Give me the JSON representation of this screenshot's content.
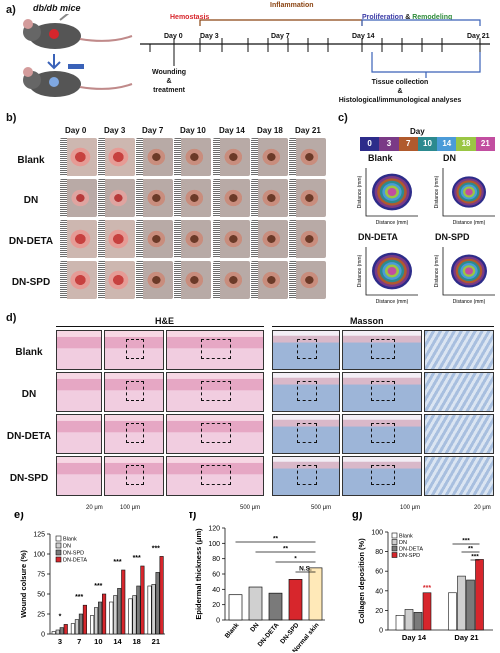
{
  "panel_a": {
    "label": "a)",
    "mouse_title": "db/db mice",
    "stages": {
      "hemostasis": "Hemostasis",
      "inflammation": "Inflammation",
      "proliferation": "Proliferation",
      "amp": "&",
      "remodeling": "Remodeling"
    },
    "days": [
      "Day 0",
      "Day 3",
      "Day 7",
      "Day 14",
      "Day 21"
    ],
    "wounding": "Wounding\n&\ntreatment",
    "tissue_collection": "Tissue collection\n&\nHistological/immunological analyses",
    "colors": {
      "hemostasis": "#d7262c",
      "inflammation": "#8b4513",
      "proliferation": "#3b3ba6",
      "remodeling": "#2e8b3a",
      "bracket": "#3a62b8"
    }
  },
  "panel_b": {
    "label": "b)",
    "days": [
      "Day 0",
      "Day 3",
      "Day 7",
      "Day 10",
      "Day 14",
      "Day 18",
      "Day 21"
    ],
    "groups": [
      "Blank",
      "DN",
      "DN-DETA",
      "DN-SPD"
    ]
  },
  "panel_c": {
    "label": "c)",
    "title": "Day",
    "legend": [
      {
        "label": "0",
        "color": "#2d2c8a"
      },
      {
        "label": "3",
        "color": "#7a3a86"
      },
      {
        "label": "7",
        "color": "#b05a2d"
      },
      {
        "label": "10",
        "color": "#2c8a8f"
      },
      {
        "label": "14",
        "color": "#4b9bd8"
      },
      {
        "label": "18",
        "color": "#9ac644"
      },
      {
        "label": "21",
        "color": "#c24ea0"
      }
    ],
    "plots": [
      "Blank",
      "DN",
      "DN-DETA",
      "DN-SPD"
    ],
    "xlabel": "Distance (mm)",
    "ylabel": "Distance (mm)"
  },
  "panel_d": {
    "label": "d)",
    "he_title": "H&E",
    "masson_title": "Masson",
    "groups": [
      "Blank",
      "DN",
      "DN-DETA",
      "DN-SPD"
    ],
    "scales": [
      "20 μm",
      "100 μm",
      "500 μm",
      "500 μm",
      "100 μm",
      "20 μm"
    ]
  },
  "chart_data": [
    {
      "panel": "e)",
      "type": "bar",
      "ylabel": "Wound colsure (%)",
      "categories": [
        "3",
        "7",
        "10",
        "14",
        "18",
        "21"
      ],
      "ylim": [
        0,
        125
      ],
      "yticks": [
        "0",
        "25",
        "50",
        "75",
        "100",
        "125"
      ],
      "series": [
        {
          "name": "Blank",
          "color": "#ffffff",
          "values": [
            3,
            13,
            23,
            40,
            44,
            60
          ]
        },
        {
          "name": "DN",
          "color": "#cfcfcf",
          "values": [
            5,
            18,
            33,
            48,
            48,
            62
          ]
        },
        {
          "name": "DN-SPD",
          "color": "#7a7a7a",
          "values": [
            8,
            25,
            40,
            57,
            60,
            77
          ]
        },
        {
          "name": "DN-DETA",
          "color": "#d7262c",
          "values": [
            12,
            36,
            50,
            80,
            85,
            97
          ]
        }
      ],
      "annotations": [
        "*",
        "***",
        "***",
        "***",
        "***",
        "***"
      ]
    },
    {
      "panel": "f)",
      "type": "bar",
      "ylabel": "Epidermal thickness (μm)",
      "categories": [
        "Blank",
        "DN",
        "DN-DETA",
        "DN-SPD",
        "Normal skin"
      ],
      "ylim": [
        0,
        120
      ],
      "yticks": [
        "0",
        "20",
        "40",
        "60",
        "80",
        "100",
        "120"
      ],
      "values": [
        33,
        43,
        35,
        53,
        68
      ],
      "colors": [
        "#ffffff",
        "#d0d0d0",
        "#7a7a7a",
        "#d7262c",
        "#ffe9b8"
      ],
      "annotations": [
        "**",
        "**",
        "*",
        "N.S."
      ]
    },
    {
      "panel": "g)",
      "type": "bar",
      "ylabel": "Collagen deposition (%)",
      "categories": [
        "Day 14",
        "Day 21"
      ],
      "ylim": [
        0,
        100
      ],
      "yticks": [
        "0",
        "20",
        "40",
        "60",
        "80",
        "100"
      ],
      "series": [
        {
          "name": "Blank",
          "color": "#ffffff",
          "values": [
            15,
            38
          ]
        },
        {
          "name": "DN",
          "color": "#cfcfcf",
          "values": [
            21,
            55
          ]
        },
        {
          "name": "DN-DETA",
          "color": "#7a7a7a",
          "values": [
            18,
            51
          ]
        },
        {
          "name": "DN-SPD",
          "color": "#d7262c",
          "values": [
            38,
            72
          ]
        }
      ],
      "annotations": [
        "***",
        "***",
        "**",
        "***"
      ]
    }
  ]
}
